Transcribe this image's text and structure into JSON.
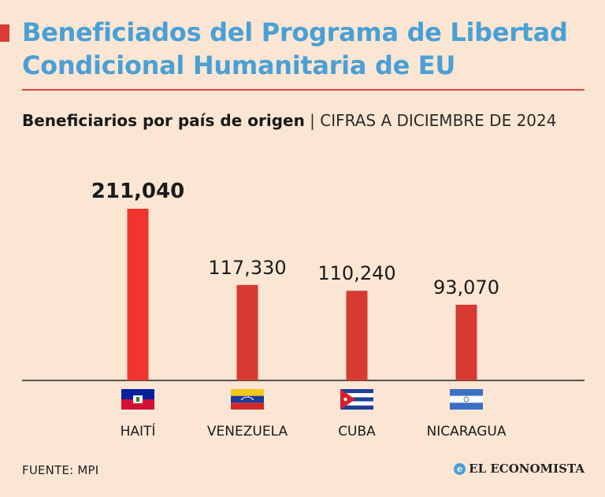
{
  "header": {
    "title": "Beneficiados del Programa de Libertad Condicional Humanitaria de EU",
    "subtitle_bold": "Beneficiarios por país de origen",
    "subtitle_separator": "|",
    "subtitle_light": "CIFRAS A DICIEMBRE DE 2024"
  },
  "footer": {
    "source": "FUENTE: MPI",
    "brand": "EL ECONOMISTA",
    "brand_icon": "e-logo-icon"
  },
  "colors": {
    "background": "#fbe6d4",
    "title": "#4aa0d4",
    "highlight_bar": "#f0342f",
    "bar": "#d63a33",
    "rule": "#d9453f"
  },
  "chart_data": {
    "type": "bar",
    "categories": [
      "HAITÍ",
      "VENEZUELA",
      "CUBA",
      "NICARAGUA"
    ],
    "values": [
      211040,
      117330,
      110240,
      93070
    ],
    "data_labels": [
      "211,040",
      "117,330",
      "110,240",
      "93,070"
    ],
    "highlight_index": 0,
    "flags": [
      "haiti-flag-icon",
      "venezuela-flag-icon",
      "cuba-flag-icon",
      "nicaragua-flag-icon"
    ],
    "ylim": [
      0,
      211040
    ],
    "grid": false,
    "legend": "none"
  }
}
